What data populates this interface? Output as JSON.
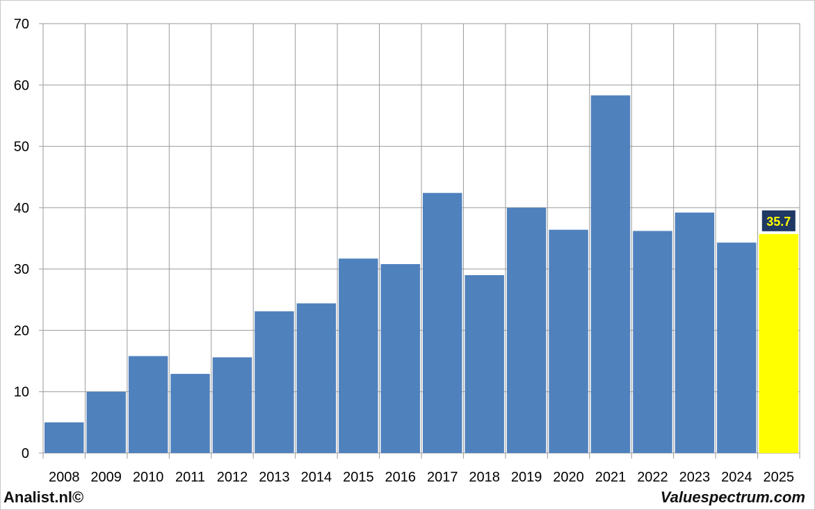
{
  "chart_data": {
    "type": "bar",
    "categories": [
      "2008",
      "2009",
      "2010",
      "2011",
      "2012",
      "2013",
      "2014",
      "2015",
      "2016",
      "2017",
      "2018",
      "2019",
      "2020",
      "2021",
      "2022",
      "2023",
      "2024",
      "2025"
    ],
    "values": [
      5.0,
      10.0,
      15.8,
      12.9,
      15.6,
      23.1,
      24.4,
      31.7,
      30.8,
      42.4,
      29.0,
      40.0,
      36.4,
      58.3,
      36.2,
      39.2,
      34.3,
      35.7
    ],
    "yticks": [
      0,
      10,
      20,
      30,
      40,
      50,
      60,
      70
    ],
    "ylim": [
      0,
      70
    ],
    "grid": true,
    "highlight": {
      "category": "2025",
      "label": "35.7",
      "color": "#ffff00"
    },
    "bar_color": "#4f81bd",
    "label_bg": "#1f3864",
    "label_color": "#ffff00"
  },
  "footer": {
    "left": "Analist.nl©",
    "right": "Valuespectrum.com"
  }
}
